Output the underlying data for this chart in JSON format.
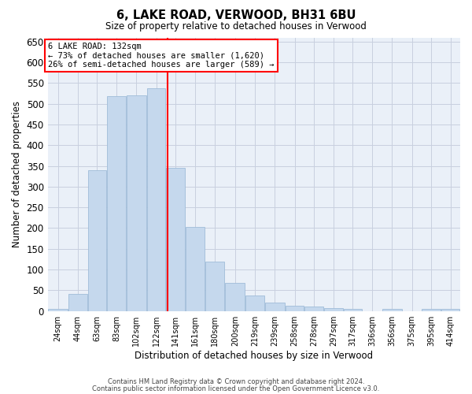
{
  "title": "6, LAKE ROAD, VERWOOD, BH31 6BU",
  "subtitle": "Size of property relative to detached houses in Verwood",
  "xlabel": "Distribution of detached houses by size in Verwood",
  "ylabel": "Number of detached properties",
  "bar_color": "#c5d8ed",
  "bar_edge_color": "#a0bcd8",
  "background_color": "#ffffff",
  "plot_bg_color": "#eaf0f8",
  "grid_color": "#c8d0df",
  "annotation_text": "6 LAKE ROAD: 132sqm\n← 73% of detached houses are smaller (1,620)\n26% of semi-detached houses are larger (589) →",
  "vline_x": 132,
  "vline_color": "red",
  "categories": [
    "24sqm",
    "44sqm",
    "63sqm",
    "83sqm",
    "102sqm",
    "122sqm",
    "141sqm",
    "161sqm",
    "180sqm",
    "200sqm",
    "219sqm",
    "239sqm",
    "258sqm",
    "278sqm",
    "297sqm",
    "317sqm",
    "336sqm",
    "356sqm",
    "375sqm",
    "395sqm",
    "414sqm"
  ],
  "bin_edges": [
    14.5,
    34.5,
    53.5,
    72.5,
    91.5,
    111.5,
    130.5,
    149.5,
    168.5,
    188.5,
    208.5,
    227.5,
    247.5,
    266.5,
    285.5,
    304.5,
    323.5,
    342.5,
    362.5,
    381.5,
    400.5,
    419.5
  ],
  "values": [
    5,
    42,
    340,
    518,
    520,
    537,
    345,
    203,
    120,
    67,
    37,
    20,
    12,
    10,
    7,
    5,
    0,
    5,
    0,
    5,
    5
  ],
  "ylim": [
    0,
    660
  ],
  "yticks": [
    0,
    50,
    100,
    150,
    200,
    250,
    300,
    350,
    400,
    450,
    500,
    550,
    600,
    650
  ],
  "footer_line1": "Contains HM Land Registry data © Crown copyright and database right 2024.",
  "footer_line2": "Contains public sector information licensed under the Open Government Licence v3.0."
}
